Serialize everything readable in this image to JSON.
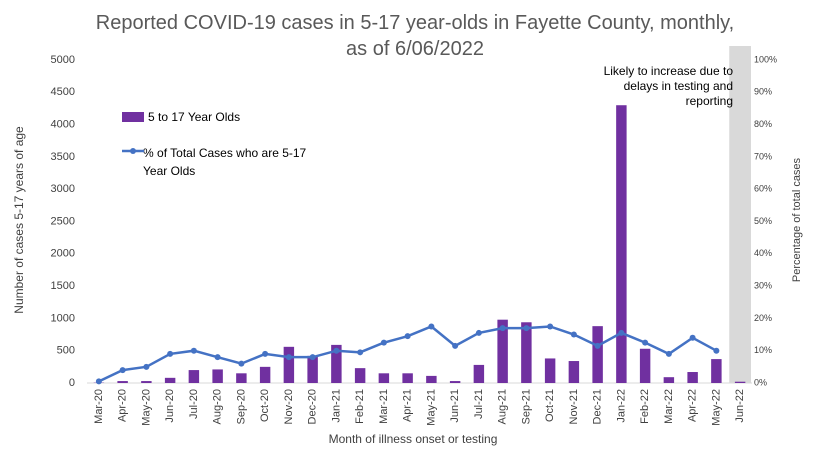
{
  "chart_data": {
    "type": "bar_line",
    "title": "Reported COVID-19 cases in 5-17 year-olds in Fayette County, monthly, as of 6/06/2022",
    "annotation": "Likely to increase due to delays in testing and reporting",
    "xlabel": "Month of illness onset or testing",
    "ylabel": "Number of cases 5-17 years of age",
    "y2label": "Percentage of total cases",
    "categories": [
      "Mar-20",
      "Apr-20",
      "May-20",
      "Jun-20",
      "Jul-20",
      "Aug-20",
      "Sep-20",
      "Oct-20",
      "Nov-20",
      "Dec-20",
      "Jan-21",
      "Feb-21",
      "Mar-21",
      "Apr-21",
      "May-21",
      "Jun-21",
      "Jul-21",
      "Aug-21",
      "Sep-21",
      "Oct-21",
      "Nov-21",
      "Dec-21",
      "Jan-22",
      "Feb-22",
      "Mar-22",
      "Apr-22",
      "May-22",
      "Jun-22"
    ],
    "series": [
      {
        "name": "5 to 17 Year Olds",
        "color": "#7030a0",
        "type": "bar",
        "values": [
          5,
          30,
          30,
          80,
          200,
          210,
          150,
          250,
          560,
          420,
          590,
          230,
          150,
          150,
          110,
          30,
          280,
          980,
          940,
          380,
          340,
          880,
          4300,
          530,
          90,
          170,
          370,
          20
        ]
      },
      {
        "name": "% of Total Cases who are 5-17 Year Olds",
        "color": "#4472c4",
        "type": "line",
        "axis": "y2",
        "values": [
          0.5,
          4,
          5,
          9,
          10,
          8,
          6,
          9,
          8,
          8,
          10,
          9.5,
          12.5,
          14.5,
          17.5,
          11.5,
          15.5,
          17,
          17,
          17.5,
          15,
          11.5,
          15.5,
          12.5,
          9,
          14,
          10,
          null
        ]
      }
    ],
    "ylim": [
      0,
      5000
    ],
    "yticks": [
      0,
      500,
      1000,
      1500,
      2000,
      2500,
      3000,
      3500,
      4000,
      4500,
      5000
    ],
    "y2lim": [
      0,
      100
    ],
    "y2ticks": [
      {
        "value": 0,
        "label": "0%"
      },
      {
        "value": 10,
        "label": "10%"
      },
      {
        "value": 20,
        "label": "20%"
      },
      {
        "value": 30,
        "label": "30%"
      },
      {
        "value": 40,
        "label": "40%"
      },
      {
        "value": 50,
        "label": "50%"
      },
      {
        "value": 60,
        "label": "60%"
      },
      {
        "value": 70,
        "label": "70%"
      },
      {
        "value": 80,
        "label": "80%"
      },
      {
        "value": 90,
        "label": "90%"
      },
      {
        "value": 100,
        "label": "100%"
      }
    ],
    "grid": false
  }
}
